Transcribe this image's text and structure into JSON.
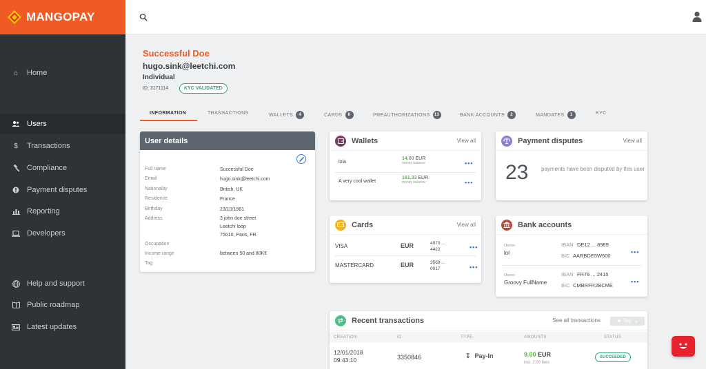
{
  "brand": {
    "name": "MANGOPAY",
    "accent": "#f05a24"
  },
  "sidebar": {
    "items": [
      {
        "label": "Home",
        "icon": "home-icon"
      },
      {
        "label": "Users",
        "icon": "users-icon",
        "active": true
      },
      {
        "label": "Transactions",
        "icon": "dollar-icon"
      },
      {
        "label": "Compliance",
        "icon": "gavel-icon"
      },
      {
        "label": "Payment disputes",
        "icon": "alert-icon"
      },
      {
        "label": "Reporting",
        "icon": "bar-chart-icon"
      },
      {
        "label": "Developers",
        "icon": "laptop-icon"
      },
      {
        "label": "Help and support",
        "icon": "globe-icon"
      },
      {
        "label": "Public roadmap",
        "icon": "book-icon"
      },
      {
        "label": "Latest updates",
        "icon": "news-icon"
      }
    ]
  },
  "user": {
    "name": "Successful Doe",
    "email": "hugo.sink@leetchi.com",
    "type": "Individual",
    "id_label": "ID: 3171114",
    "kyc_badge": "KYC VALIDATED"
  },
  "tabs": [
    {
      "label": "INFORMATION",
      "active": true
    },
    {
      "label": "TRANSACTIONS"
    },
    {
      "label": "WALLETS",
      "count": "4"
    },
    {
      "label": "CARDS",
      "count": "6"
    },
    {
      "label": "PREAUTHORIZATIONS",
      "count": "13"
    },
    {
      "label": "BANK ACCOUNTS",
      "count": "2"
    },
    {
      "label": "MANDATES",
      "count": "1"
    },
    {
      "label": "KYC"
    }
  ],
  "user_details": {
    "title": "User details",
    "fields": [
      {
        "label": "Full name",
        "value": "Successful Doe"
      },
      {
        "label": "Email",
        "value": "hugo.sink@leetchi.com"
      },
      {
        "label": "Nationality",
        "value": "British, UK"
      },
      {
        "label": "Residence",
        "value": "France"
      },
      {
        "label": "Birthday",
        "value": "23/10/1961"
      },
      {
        "label": "Address",
        "value_lines": [
          "3 john doe street",
          "Leetchi loop",
          "75010, Paris, FR"
        ]
      },
      {
        "label": "Occupation",
        "value": ""
      },
      {
        "label": "Income range",
        "value": "between 50 and 80K€"
      },
      {
        "label": "Tag",
        "value": ""
      }
    ]
  },
  "wallets": {
    "title": "Wallets",
    "view_all": "View all",
    "items": [
      {
        "name": "lola",
        "amount": "14.00",
        "currency": "EUR",
        "sub": "money balance"
      },
      {
        "name": "A very cool wallet",
        "amount": "161.33",
        "currency": "EUR",
        "sub": "money balance"
      }
    ]
  },
  "cards": {
    "title": "Cards",
    "view_all": "View all",
    "items": [
      {
        "brand": "VISA",
        "currency": "EUR",
        "num1": "4970 ...",
        "num2": "4422"
      },
      {
        "brand": "MASTERCARD",
        "currency": "EUR",
        "num1": "3569 ...",
        "num2": "0017"
      }
    ]
  },
  "disputes": {
    "title": "Payment disputes",
    "view_all": "View all",
    "count": "23",
    "text": "payments have been disputed by this user"
  },
  "bank_accounts": {
    "title": "Bank accounts",
    "items": [
      {
        "owner_label": "Owner",
        "owner": "lol",
        "iban_label": "IBAN",
        "iban": "DE12 ... 8989",
        "bic_label": "BIC",
        "bic": "AARBDE5W600"
      },
      {
        "owner_label": "Owner",
        "owner": "Groovy FullName",
        "iban_label": "IBAN",
        "iban": "FR76 ... 2415",
        "bic_label": "BIC",
        "bic": "CMBRFR2BCME"
      }
    ]
  },
  "recent": {
    "title": "Recent transactions",
    "see_all": "See all transactions",
    "tag": "Tag",
    "columns": [
      "CREATION",
      "ID",
      "TYPE",
      "AMOUNTS",
      "STATUS"
    ],
    "row": {
      "date": "12/01/2018",
      "time": "09:43:10",
      "id": "3350846",
      "type": "Pay-In",
      "amount": "9.00",
      "currency": "EUR",
      "fees": "incl. 2.00 fees",
      "status": "SUCCEEDED"
    }
  }
}
